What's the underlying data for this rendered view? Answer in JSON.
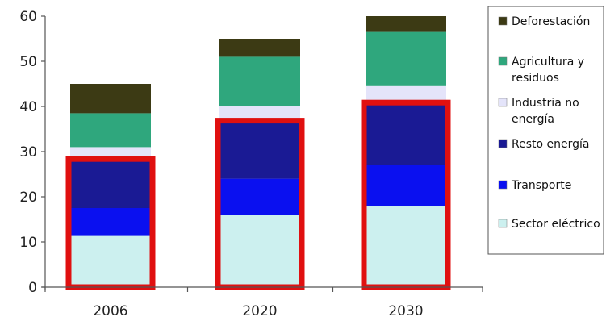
{
  "chart_data": {
    "type": "bar",
    "stacked": true,
    "categories": [
      "2006",
      "2020",
      "2030"
    ],
    "ylim": [
      0,
      60
    ],
    "yticks": [
      "0",
      "10",
      "20",
      "30",
      "40",
      "50",
      "60"
    ],
    "series": [
      {
        "name": "Sector eléctrico",
        "values": [
          11.5,
          16,
          18
        ],
        "color": "#ccf0ef"
      },
      {
        "name": "Transporte",
        "values": [
          6,
          8,
          9
        ],
        "color": "#0a10f0"
      },
      {
        "name": "Resto energía",
        "values": [
          10.5,
          12.5,
          13.5
        ],
        "color": "#1a1a94"
      },
      {
        "name": "Industria no energía",
        "values": [
          3,
          3.5,
          4
        ],
        "color": "#e4e4fa"
      },
      {
        "name": "Agricultura y residuos",
        "values": [
          7.5,
          11,
          12
        ],
        "color": "#2fa77d"
      },
      {
        "name": "Deforestación",
        "values": [
          6.5,
          4,
          3.5
        ],
        "color": "#3c3a14"
      }
    ],
    "highlight": {
      "series_covered": 3,
      "color": "#e01010"
    },
    "legend_position": "right",
    "legend_order": [
      5,
      4,
      3,
      2,
      1,
      0
    ],
    "legend_lines": [
      [
        "Deforestación"
      ],
      [
        "Agricultura y",
        "residuos"
      ],
      [
        "Industria no",
        "energía"
      ],
      [
        "Resto energía"
      ],
      [
        "Transporte"
      ],
      [
        "Sector eléctrico"
      ]
    ]
  }
}
